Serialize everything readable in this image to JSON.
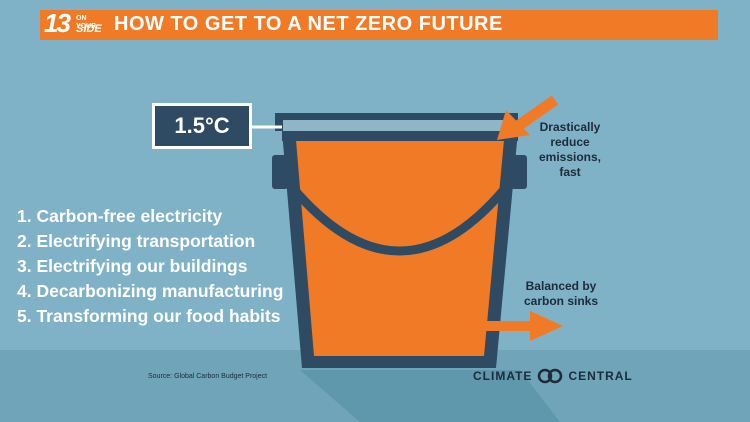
{
  "header": {
    "logo_number": "13",
    "logo_on": "ON YOUR",
    "logo_side": "SIDE",
    "title": "HOW TO GET TO A NET ZERO FUTURE"
  },
  "thermometer_label": "1.5°C",
  "steps": [
    "1. Carbon-free electricity",
    "2. Electrifying transportation",
    "3. Electrifying our buildings",
    "4. Decarbonizing manufacturing",
    "5. Transforming our food habits"
  ],
  "annotations": {
    "reduce": [
      "Drastically",
      "reduce",
      "emissions,",
      "fast"
    ],
    "balanced": [
      "Balanced by",
      "carbon sinks"
    ]
  },
  "footer": {
    "source": "Source: Global Carbon Budget Project",
    "brand_left": "CLIMATE",
    "brand_right": "CENTRAL"
  },
  "colors": {
    "background": "#7fb2c6",
    "accent": "#f07a26",
    "navy": "#2f4a63"
  }
}
